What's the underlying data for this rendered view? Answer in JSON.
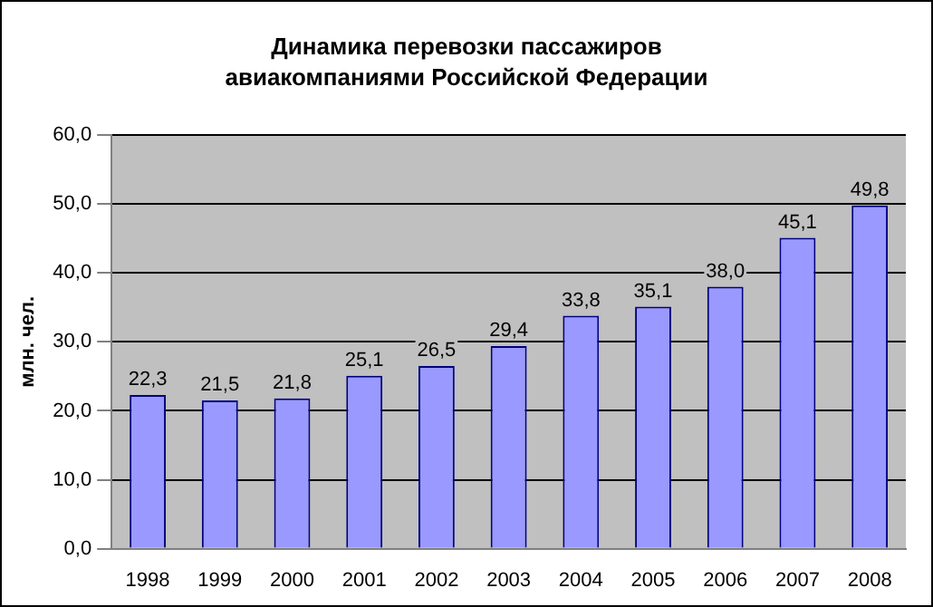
{
  "chart_data": {
    "type": "bar",
    "title": "Динамика перевозки пассажиров авиакомпаниями Российской Федерации",
    "ylabel": "млн. чел.",
    "categories": [
      "1998",
      "1999",
      "2000",
      "2001",
      "2002",
      "2003",
      "2004",
      "2005",
      "2006",
      "2007",
      "2008"
    ],
    "values": [
      22.3,
      21.5,
      21.8,
      25.1,
      26.5,
      29.4,
      33.8,
      35.1,
      38.0,
      45.1,
      49.8
    ],
    "value_labels": [
      "22,3",
      "21,5",
      "21,8",
      "25,1",
      "26,5",
      "29,4",
      "33,8",
      "35,1",
      "38,0",
      "45,1",
      "49,8"
    ],
    "color": "#9999ff",
    "ylim": [
      0,
      60
    ],
    "yticks": [
      {
        "value": 0,
        "label": "0,0"
      },
      {
        "value": 10,
        "label": "10,0"
      },
      {
        "value": 20,
        "label": "20,0"
      },
      {
        "value": 30,
        "label": "30,0"
      },
      {
        "value": 40,
        "label": "40,0"
      },
      {
        "value": 50,
        "label": "50,0"
      },
      {
        "value": 60,
        "label": "60,0"
      }
    ],
    "grid": "y",
    "legend": false
  }
}
